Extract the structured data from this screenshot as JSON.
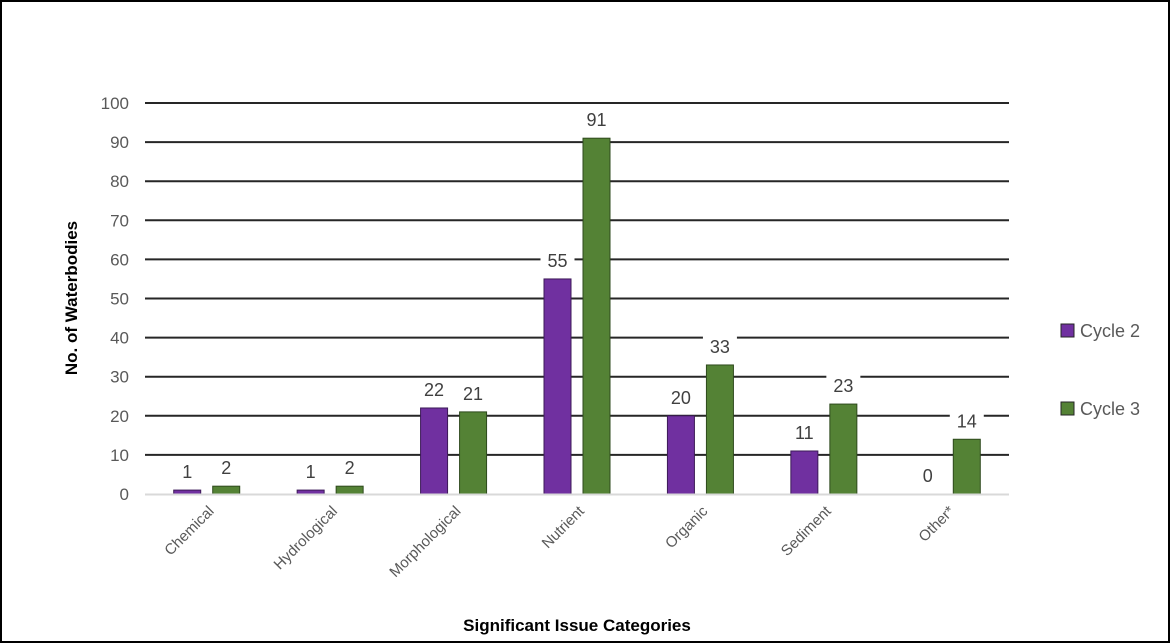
{
  "chart_data": {
    "type": "bar",
    "title": "",
    "xlabel": "Significant Issue Categories",
    "ylabel": "No. of Waterbodies",
    "ylim": [
      0,
      100
    ],
    "yticks": [
      0,
      10,
      20,
      30,
      40,
      50,
      60,
      70,
      80,
      90,
      100
    ],
    "grid": true,
    "legend_position": "right",
    "categories": [
      "Chemical",
      "Hydrological",
      "Morphological",
      "Nutrient",
      "Organic",
      "Sediment",
      "Other*"
    ],
    "series": [
      {
        "name": "Cycle 2",
        "color": "#7030A0",
        "values": [
          1,
          1,
          22,
          55,
          20,
          11,
          0
        ]
      },
      {
        "name": "Cycle 3",
        "color": "#548235",
        "values": [
          2,
          2,
          21,
          91,
          33,
          23,
          14
        ]
      }
    ],
    "data_labels": true
  }
}
